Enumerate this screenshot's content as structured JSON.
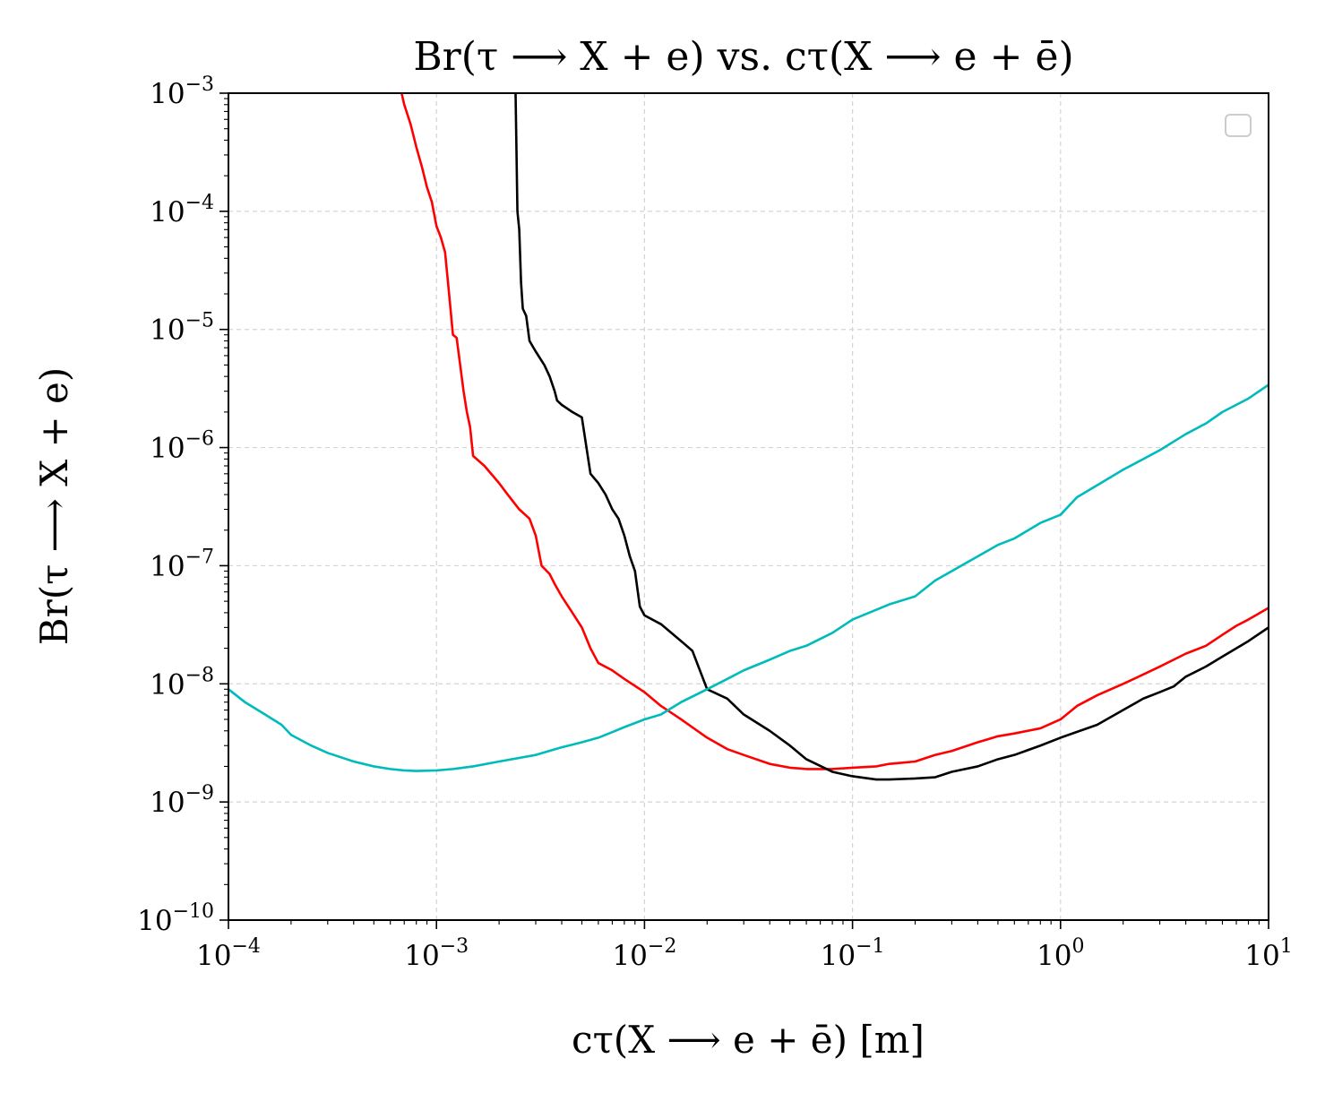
{
  "chart_data": {
    "type": "line",
    "title": "Br(τ ⟶ X + e) vs. cτ(X ⟶ e + ē)",
    "xlabel": "cτ(X ⟶ e + ē) [m]",
    "ylabel": "Br(τ ⟶ X + e)",
    "xscale": "log",
    "yscale": "log",
    "xlim": [
      0.0001,
      10
    ],
    "ylim": [
      1e-10,
      0.001
    ],
    "grid": true,
    "legend": "top-right (empty)",
    "x_ticks": [
      {
        "base": "10",
        "exp": "−4",
        "value": 0.0001
      },
      {
        "base": "10",
        "exp": "−3",
        "value": 0.001
      },
      {
        "base": "10",
        "exp": "−2",
        "value": 0.01
      },
      {
        "base": "10",
        "exp": "−1",
        "value": 0.1
      },
      {
        "base": "10",
        "exp": "0",
        "value": 1
      },
      {
        "base": "10",
        "exp": "1",
        "value": 10
      }
    ],
    "y_ticks": [
      {
        "base": "10",
        "exp": "−10",
        "value": 1e-10
      },
      {
        "base": "10",
        "exp": "−9",
        "value": 1e-09
      },
      {
        "base": "10",
        "exp": "−8",
        "value": 1e-08
      },
      {
        "base": "10",
        "exp": "−7",
        "value": 1e-07
      },
      {
        "base": "10",
        "exp": "−6",
        "value": 1e-06
      },
      {
        "base": "10",
        "exp": "−5",
        "value": 1e-05
      },
      {
        "base": "10",
        "exp": "−4",
        "value": 0.0001
      },
      {
        "base": "10",
        "exp": "−3",
        "value": 0.001
      }
    ],
    "series": [
      {
        "color": "#ff0000",
        "x": [
          0.00068,
          0.0007,
          0.00075,
          0.0008,
          0.00085,
          0.0009,
          0.00095,
          0.001,
          0.00105,
          0.0011,
          0.00115,
          0.0012,
          0.00125,
          0.0013,
          0.00135,
          0.0014,
          0.00145,
          0.0015,
          0.0017,
          0.002,
          0.0022,
          0.0025,
          0.0028,
          0.003,
          0.0032,
          0.0035,
          0.0037,
          0.004,
          0.0045,
          0.005,
          0.0055,
          0.006,
          0.007,
          0.008,
          0.01,
          0.012,
          0.015,
          0.02,
          0.025,
          0.03,
          0.04,
          0.05,
          0.06,
          0.08,
          0.1,
          0.13,
          0.15,
          0.2,
          0.25,
          0.3,
          0.4,
          0.45,
          0.5,
          0.6,
          0.8,
          1.0,
          1.2,
          1.5,
          2.0,
          2.5,
          3.0,
          4.0,
          5.0,
          6.0,
          7.0,
          8.0,
          10.0
        ],
        "y": [
          0.001,
          0.0008,
          0.00055,
          0.00035,
          0.00024,
          0.00016,
          0.00012,
          7.5e-05,
          6e-05,
          4.5e-05,
          2e-05,
          9e-06,
          8.5e-06,
          5e-06,
          3e-06,
          2e-06,
          1.5e-06,
          8.5e-07,
          7e-07,
          5e-07,
          4e-07,
          3e-07,
          2.5e-07,
          1.8e-07,
          1e-07,
          8.5e-08,
          7e-08,
          5.5e-08,
          4e-08,
          3e-08,
          2e-08,
          1.5e-08,
          1.3e-08,
          1.1e-08,
          8.5e-09,
          6.5e-09,
          5e-09,
          3.5e-09,
          2.8e-09,
          2.5e-09,
          2.1e-09,
          1.95e-09,
          1.9e-09,
          1.9e-09,
          1.95e-09,
          2e-09,
          2.1e-09,
          2.2e-09,
          2.5e-09,
          2.7e-09,
          3.2e-09,
          3.4e-09,
          3.6e-09,
          3.8e-09,
          4.2e-09,
          5e-09,
          6.5e-09,
          8e-09,
          1e-08,
          1.2e-08,
          1.4e-08,
          1.8e-08,
          2.1e-08,
          2.6e-08,
          3.1e-08,
          3.5e-08,
          4.4e-08
        ]
      },
      {
        "color": "#000000",
        "x": [
          0.0024,
          0.00245,
          0.0025,
          0.00255,
          0.0026,
          0.0027,
          0.0028,
          0.003,
          0.0033,
          0.0035,
          0.0037,
          0.0038,
          0.004,
          0.0045,
          0.005,
          0.0055,
          0.006,
          0.0065,
          0.007,
          0.0075,
          0.008,
          0.0085,
          0.009,
          0.0095,
          0.01,
          0.012,
          0.015,
          0.017,
          0.02,
          0.025,
          0.03,
          0.04,
          0.05,
          0.06,
          0.08,
          0.1,
          0.13,
          0.15,
          0.2,
          0.25,
          0.3,
          0.4,
          0.5,
          0.6,
          0.8,
          1.0,
          1.5,
          2.0,
          2.5,
          3.0,
          3.5,
          4.0,
          5.0,
          6.0,
          8.0,
          10.0
        ],
        "y": [
          0.001,
          0.0001,
          7e-05,
          2.5e-05,
          1.5e-05,
          1.3e-05,
          8e-06,
          6.5e-06,
          5e-06,
          4e-06,
          3e-06,
          2.5e-06,
          2.3e-06,
          2e-06,
          1.8e-06,
          6e-07,
          5e-07,
          4e-07,
          3e-07,
          2.5e-07,
          1.8e-07,
          1.2e-07,
          9e-08,
          4.5e-08,
          3.8e-08,
          3.2e-08,
          2.3e-08,
          1.9e-08,
          9e-09,
          7.5e-09,
          5.5e-09,
          4e-09,
          3e-09,
          2.3e-09,
          1.8e-09,
          1.65e-09,
          1.55e-09,
          1.55e-09,
          1.58e-09,
          1.62e-09,
          1.8e-09,
          2e-09,
          2.3e-09,
          2.5e-09,
          3e-09,
          3.5e-09,
          4.5e-09,
          6e-09,
          7.5e-09,
          8.5e-09,
          9.5e-09,
          1.15e-08,
          1.4e-08,
          1.7e-08,
          2.3e-08,
          3e-08
        ]
      },
      {
        "color": "#00bbbb",
        "x": [
          0.0001,
          0.00012,
          0.00015,
          0.00018,
          0.0002,
          0.00025,
          0.0003,
          0.0004,
          0.0005,
          0.0006,
          0.0007,
          0.0008,
          0.001,
          0.0012,
          0.0015,
          0.002,
          0.003,
          0.004,
          0.005,
          0.006,
          0.007,
          0.008,
          0.01,
          0.012,
          0.015,
          0.02,
          0.025,
          0.03,
          0.04,
          0.05,
          0.06,
          0.08,
          0.1,
          0.15,
          0.2,
          0.25,
          0.3,
          0.4,
          0.5,
          0.6,
          0.8,
          1.0,
          1.2,
          1.5,
          2.0,
          2.5,
          3.0,
          4.0,
          5.0,
          6.0,
          8.0,
          10.0
        ],
        "y": [
          9e-09,
          7e-09,
          5.5e-09,
          4.5e-09,
          3.7e-09,
          3e-09,
          2.6e-09,
          2.2e-09,
          2e-09,
          1.9e-09,
          1.85e-09,
          1.83e-09,
          1.85e-09,
          1.9e-09,
          2e-09,
          2.2e-09,
          2.5e-09,
          2.9e-09,
          3.2e-09,
          3.5e-09,
          3.9e-09,
          4.3e-09,
          5e-09,
          5.5e-09,
          7e-09,
          9e-09,
          1.1e-08,
          1.3e-08,
          1.6e-08,
          1.9e-08,
          2.1e-08,
          2.7e-08,
          3.5e-08,
          4.7e-08,
          5.5e-08,
          7.5e-08,
          9e-08,
          1.2e-07,
          1.5e-07,
          1.7e-07,
          2.3e-07,
          2.7e-07,
          3.8e-07,
          4.8e-07,
          6.5e-07,
          8e-07,
          9.5e-07,
          1.3e-06,
          1.6e-06,
          2e-06,
          2.6e-06,
          3.4e-06
        ]
      }
    ]
  }
}
